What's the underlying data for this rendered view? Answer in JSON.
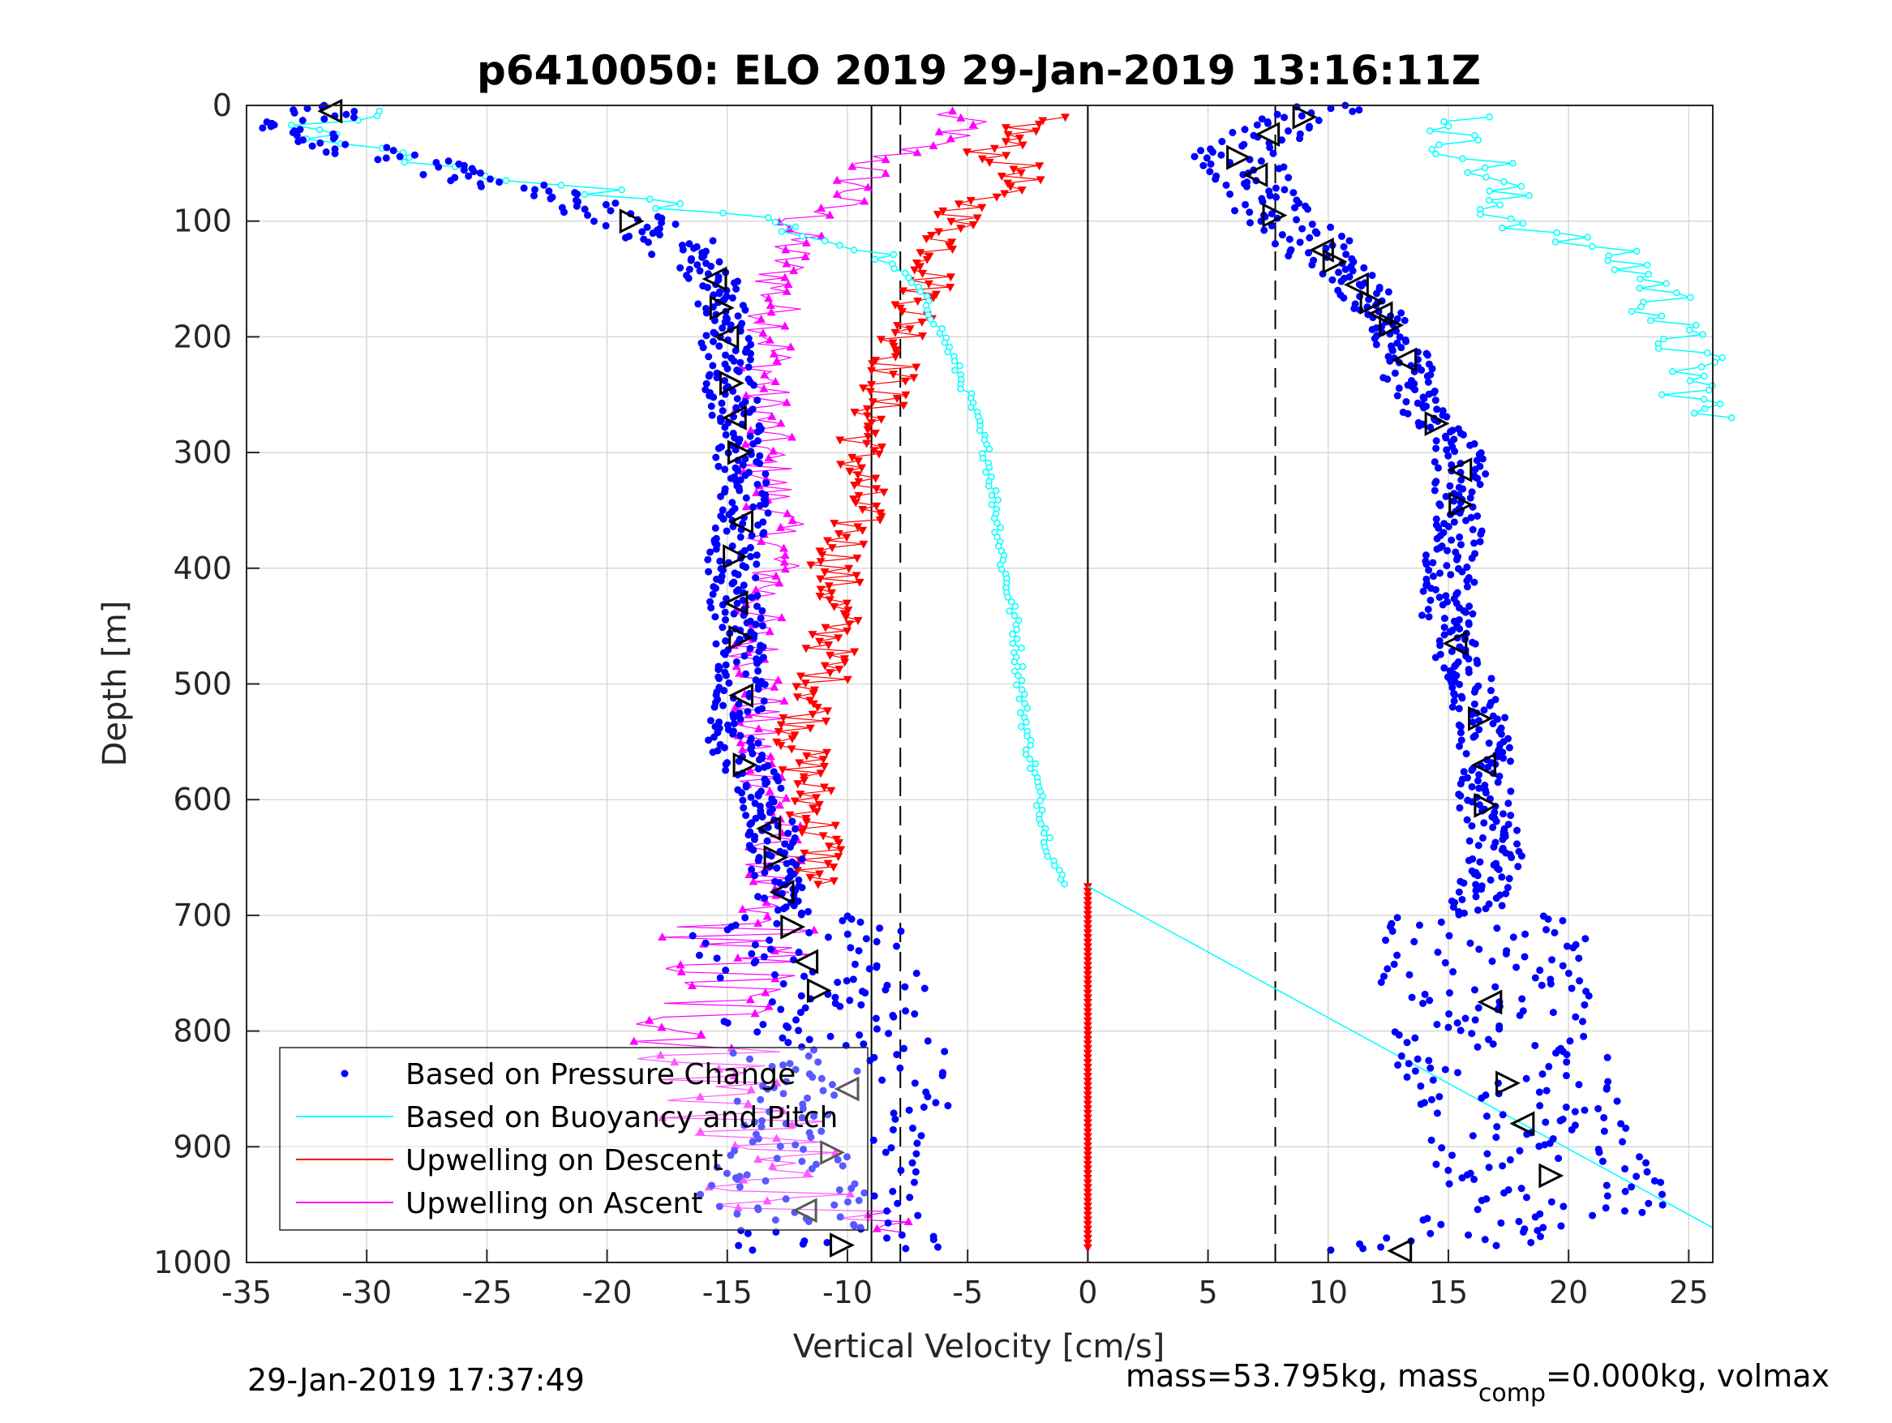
{
  "chart_data": {
    "type": "scatter",
    "title": "p6410050: ELO 2019 29-Jan-2019 13:16:11Z",
    "xlabel": "Vertical Velocity [cm/s]",
    "ylabel": "Depth [m]",
    "xlim": [
      -35,
      26
    ],
    "ylim": [
      0,
      1000
    ],
    "y_reversed": true,
    "grid": true,
    "x_ticks": [
      "-35",
      "-30",
      "-25",
      "-20",
      "-15",
      "-10",
      "-5",
      "0",
      "5",
      "10",
      "15",
      "20",
      "25"
    ],
    "y_ticks": [
      "0",
      "100",
      "200",
      "300",
      "400",
      "500",
      "600",
      "700",
      "800",
      "900",
      "1000"
    ],
    "legend_position": "bottom-left",
    "legend": [
      {
        "label": "Based on Pressure Change",
        "color": "#0000ff",
        "style": "dot"
      },
      {
        "label": "Based on Buoyancy and Pitch",
        "color": "#00ffff",
        "style": "line"
      },
      {
        "label": "Upwelling on Descent",
        "color": "#ff0000",
        "style": "line"
      },
      {
        "label": "Upwelling on Ascent",
        "color": "#ff00ff",
        "style": "line"
      }
    ],
    "reference_lines": {
      "solid_x": [
        0,
        -9
      ],
      "dashed_x": [
        -7.8,
        7.8
      ],
      "solid_x_from_depth": [
        [
          8.2,
          0
        ]
      ]
    },
    "series": [
      {
        "name": "Based on Pressure Change",
        "color": "#0000ff",
        "branches": [
          {
            "depth": [
              0,
              20,
              40,
              60,
              80,
              100,
              120,
              150,
              200,
              250,
              300,
              350,
              400,
              450,
              500,
              550,
              600,
              650,
              700,
              750,
              800,
              850,
              900,
              950,
              990
            ],
            "velocity": [
              -31,
              -33,
              -30,
              -26,
              -22,
              -19,
              -17,
              -15.5,
              -15,
              -14.8,
              -14.5,
              -14.3,
              -14.8,
              -14.5,
              -14.3,
              -14.8,
              -13.5,
              -13,
              -12.5,
              -11.5,
              -10.5,
              -10,
              -10.5,
              -12,
              -10
            ]
          },
          {
            "depth": [
              0,
              20,
              40,
              60,
              80,
              100,
              120,
              150,
              200,
              250,
              300,
              350,
              400,
              450,
              500,
              550,
              600,
              650,
              700,
              750,
              800,
              850,
              900,
              950,
              990
            ],
            "velocity": [
              10,
              8,
              6,
              7,
              7,
              8,
              9.5,
              11,
              13,
              13.5,
              15.5,
              15.5,
              15,
              15,
              16,
              16.5,
              16.5,
              17,
              16,
              16.5,
              17,
              17.5,
              18.5,
              20,
              13
            ]
          }
        ]
      },
      {
        "name": "Based on Buoyancy and Pitch",
        "color": "#00ffff",
        "branches": [
          {
            "depth": [
              5,
              20,
              40,
              60,
              75,
              85,
              95,
              105,
              120,
              140,
              160,
              180,
              200,
              250,
              300,
              350,
              400,
              450,
              500,
              550,
              600,
              650,
              675
            ],
            "velocity": [
              -30,
              -33,
              -29,
              -25,
              -20,
              -18,
              -15,
              -13,
              -10,
              -8,
              -7,
              -6.5,
              -6,
              -5,
              -4.2,
              -3.8,
              -3.5,
              -3,
              -2.8,
              -2.5,
              -2,
              -1.5,
              -1
            ]
          },
          {
            "depth": [
              675,
              970
            ],
            "velocity": [
              0,
              26
            ]
          },
          {
            "depth": [
              10,
              30,
              50,
              70,
              90,
              110,
              130,
              160,
              190,
              215,
              270
            ],
            "velocity": [
              16,
              15,
              16.5,
              17,
              17,
              19,
              22,
              24,
              24,
              25,
              25.5
            ]
          }
        ]
      },
      {
        "name": "Upwelling on Descent",
        "color": "#ff0000",
        "branches": [
          {
            "depth": [
              10,
              40,
              60,
              80,
              100,
              150,
              200,
              250,
              300,
              350,
              400,
              450,
              500,
              550,
              600,
              645,
              675
            ],
            "velocity": [
              -2,
              -4,
              -2.5,
              -4.5,
              -5.5,
              -6.5,
              -7.5,
              -8.5,
              -9.5,
              -9.5,
              -10.5,
              -10.5,
              -11,
              -12,
              -11.5,
              -11,
              -11.5
            ]
          },
          {
            "depth": [
              675,
              990
            ],
            "velocity": [
              0,
              0
            ]
          }
        ]
      },
      {
        "name": "Upwelling on Ascent",
        "color": "#ff00ff",
        "branches": [
          {
            "depth": [
              5,
              20,
              50,
              80,
              100,
              130,
              160,
              200,
              250,
              300,
              350,
              400,
              450,
              500,
              550,
              600,
              650,
              700,
              750,
              800,
              850,
              900,
              950,
              975
            ],
            "velocity": [
              -6,
              -5,
              -9,
              -10,
              -12,
              -12.5,
              -13,
              -13,
              -13.5,
              -13.5,
              -13,
              -13,
              -14,
              -13.5,
              -14,
              -13,
              -13,
              -14,
              -15,
              -16,
              -15,
              -14,
              -12,
              -10
            ]
          }
        ]
      }
    ],
    "markers": {
      "left_branch_depths": [
        5,
        100,
        150,
        175,
        200,
        240,
        270,
        300,
        360,
        390,
        430,
        460,
        510,
        570,
        625,
        650,
        680,
        710,
        740,
        765,
        850,
        905,
        955,
        985
      ],
      "right_branch_depths": [
        10,
        25,
        45,
        60,
        95,
        125,
        135,
        155,
        170,
        180,
        190,
        220,
        275,
        315,
        345,
        465,
        530,
        570,
        605,
        775,
        845,
        880,
        925,
        990
      ]
    }
  },
  "footer": {
    "timestamp": "29-Jan-2019 17:37:49",
    "mass_text": "mass=53.795kg, mass",
    "mass_sub": "comp",
    "mass_rest": "=0.000kg, volmax"
  }
}
